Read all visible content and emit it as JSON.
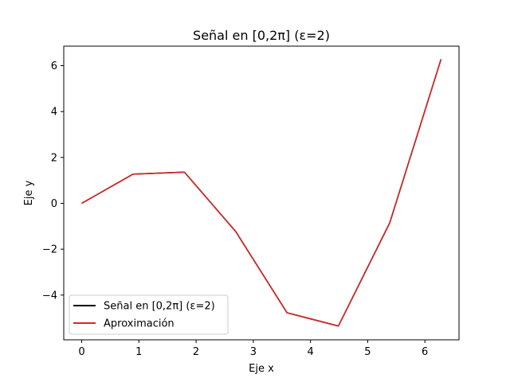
{
  "chart_data": {
    "type": "line",
    "title": "Señal en [0,2π] (ε=2)",
    "xlabel": "Eje x",
    "ylabel": "Eje y",
    "xlim": [
      -0.314,
      6.597
    ],
    "ylim": [
      -5.95,
      6.85
    ],
    "xticks": [
      0,
      1,
      2,
      3,
      4,
      5,
      6
    ],
    "yticks": [
      -4,
      -2,
      0,
      2,
      4,
      6
    ],
    "ytick_labels": [
      "−4",
      "−2",
      "0",
      "2",
      "4",
      "6"
    ],
    "xtick_labels": [
      "0",
      "1",
      "2",
      "3",
      "4",
      "5",
      "6"
    ],
    "grid": false,
    "legend_position": "lower-left",
    "series": [
      {
        "name": "Señal en [0,2π] (ε=2)",
        "color": "#000000",
        "x": [
          0.0,
          0.898,
          1.795,
          2.693,
          3.59,
          4.488,
          5.386,
          6.283
        ],
        "y": [
          0.0,
          1.27,
          1.36,
          -1.23,
          -4.77,
          -5.35,
          -0.85,
          6.28
        ]
      },
      {
        "name": "Aproximación",
        "color": "#d62728",
        "x": [
          0.0,
          0.898,
          1.795,
          2.693,
          3.59,
          4.488,
          5.386,
          6.283
        ],
        "y": [
          0.0,
          1.27,
          1.36,
          -1.23,
          -4.77,
          -5.35,
          -0.85,
          6.28
        ]
      }
    ]
  }
}
